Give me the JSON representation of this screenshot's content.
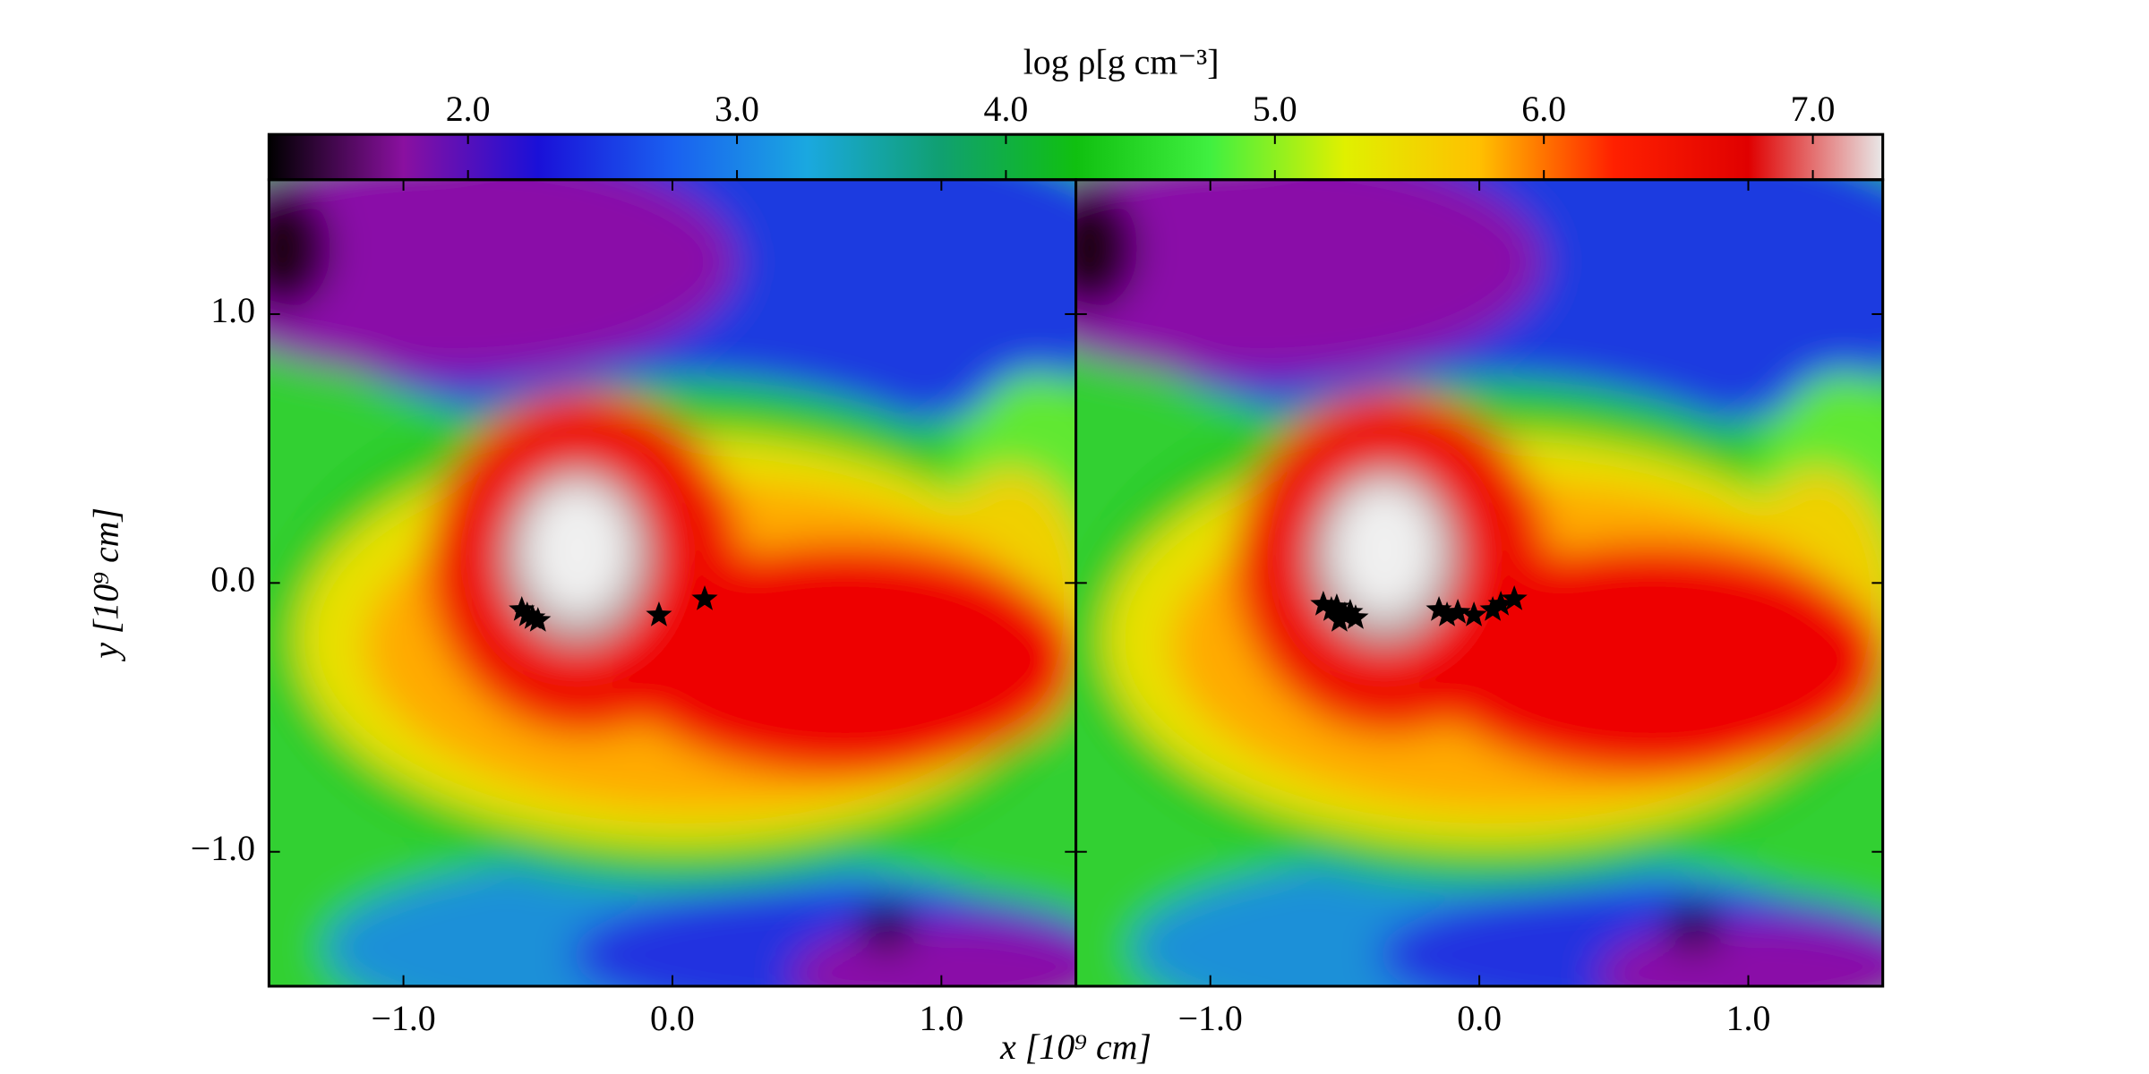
{
  "chart_data": [
    {
      "type": "heatmap",
      "xlabel": "x  [10⁹ cm]",
      "ylabel": "y  [10⁹ cm]",
      "xlim": [
        -1.5,
        1.5
      ],
      "ylim": [
        -1.5,
        1.5
      ],
      "xticks": [
        {
          "value": -1,
          "label": "−1.0"
        },
        {
          "value": 0,
          "label": "0.0"
        },
        {
          "value": 1,
          "label": "1.0"
        }
      ],
      "yticks": [
        {
          "value": -1,
          "label": "−1.0"
        },
        {
          "value": 0,
          "label": "0.0"
        },
        {
          "value": 1,
          "label": "1.0"
        }
      ],
      "marker_color": "#000000",
      "x": [
        -0.56,
        -0.52,
        -0.5,
        -0.54,
        -0.05,
        0.12
      ],
      "y": [
        -0.1,
        -0.13,
        -0.14,
        -0.12,
        -0.12,
        -0.06
      ]
    },
    {
      "type": "heatmap",
      "xlim": [
        -1.5,
        1.5
      ],
      "ylim": [
        -1.5,
        1.5
      ],
      "xticks": [
        {
          "value": -1,
          "label": "−1.0"
        },
        {
          "value": 0,
          "label": "0.0"
        },
        {
          "value": 1,
          "label": "1.0"
        }
      ],
      "yticks": [
        -1,
        0,
        1
      ],
      "marker_color": "#000000",
      "x": [
        -0.58,
        -0.55,
        -0.53,
        -0.5,
        -0.48,
        -0.46,
        -0.52,
        -0.15,
        -0.12,
        -0.08,
        -0.02,
        0.05,
        0.08,
        0.13
      ],
      "y": [
        -0.08,
        -0.1,
        -0.09,
        -0.12,
        -0.11,
        -0.13,
        -0.14,
        -0.1,
        -0.12,
        -0.11,
        -0.12,
        -0.1,
        -0.08,
        -0.06
      ]
    },
    {
      "type": "colorbar",
      "label": "log ρ[g cm⁻³]",
      "lim": [
        1.26,
        7.26
      ],
      "ticks": [
        {
          "value": 2,
          "label": "2.0"
        },
        {
          "value": 3,
          "label": "3.0"
        },
        {
          "value": 4,
          "label": "4.0"
        },
        {
          "value": 5,
          "label": "5.0"
        },
        {
          "value": 6,
          "label": "6.0"
        },
        {
          "value": 7,
          "label": "7.0"
        }
      ],
      "colors": [
        "#000000",
        "#8a10a0",
        "#1a10d8",
        "#1a60f0",
        "#1aa8e0",
        "#10a070",
        "#10c010",
        "#40f040",
        "#e0f000",
        "#ffc000",
        "#ff2000",
        "#e00000",
        "#e8e8e8"
      ]
    }
  ]
}
